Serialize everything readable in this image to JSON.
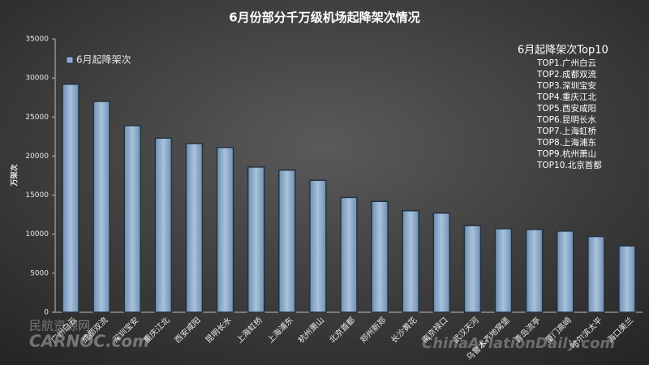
{
  "chart_data": {
    "type": "bar",
    "title": "6月份部分千万级机场起降架次情况",
    "y_label": "万架次",
    "categories": [
      "广州白云",
      "成都双流",
      "深圳宝安",
      "重庆江北",
      "西安咸阳",
      "昆明长水",
      "上海虹桥",
      "上海浦东",
      "杭州萧山",
      "北京首都",
      "郑州新郑",
      "长沙黄花",
      "南京禄口",
      "武汉天河",
      "乌鲁木齐地窝堡",
      "青岛流亭",
      "厦门高崎",
      "哈尔滨太平",
      "海口美兰"
    ],
    "series": [
      {
        "name": "6月起降架次",
        "color": "#8fadcc",
        "values": [
          29200,
          27000,
          23900,
          22300,
          21600,
          21100,
          18600,
          18200,
          16900,
          14700,
          14200,
          13000,
          12700,
          11100,
          10700,
          10600,
          10400,
          9700,
          8500
        ]
      }
    ],
    "ylim": [
      0,
      35000
    ],
    "yticks": [
      0,
      5000,
      10000,
      15000,
      20000,
      25000,
      30000,
      35000
    ],
    "legend": "top-left",
    "annotation": {
      "title": "6月起降架次Top10",
      "items": [
        "TOP1.广州白云",
        "TOP2.成都双流",
        "TOP3.深圳宝安",
        "TOP4.重庆江北",
        "TOP5.西安咸阳",
        "TOP6.昆明长水",
        "TOP7.上海虹桥",
        "TOP8.上海浦东",
        "TOP9.杭州萧山",
        "TOP10.北京首都"
      ]
    },
    "watermarks": [
      "民航资源网",
      "CARNOC.com",
      "ChinaAviationDaily.com"
    ]
  }
}
